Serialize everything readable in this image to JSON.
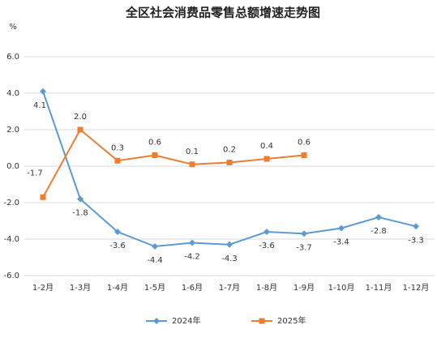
{
  "chart_data": {
    "type": "line",
    "title": "全区社会消费品零售总额增速走势图",
    "y_label": "%",
    "categories": [
      "1-2月",
      "1-3月",
      "1-4月",
      "1-5月",
      "1-6月",
      "1-7月",
      "1-8月",
      "1-9月",
      "1-10月",
      "1-11月",
      "1-12月"
    ],
    "series": [
      {
        "name": "2024年",
        "color": "#5b9bd5",
        "marker": "diamond",
        "values": [
          4.1,
          -1.8,
          -3.6,
          -4.4,
          -4.2,
          -4.3,
          -3.6,
          -3.7,
          -3.4,
          -2.8,
          -3.3
        ],
        "value_labels": [
          "4.1",
          "-1.8",
          "-3.6",
          "-4.4",
          "-4.2",
          "-4.3",
          "-3.6",
          "-3.7",
          "-3.4",
          "-2.8",
          "-3.3"
        ]
      },
      {
        "name": "2025年",
        "color": "#ed7d31",
        "marker": "square",
        "values": [
          -1.7,
          2.0,
          0.3,
          0.6,
          0.1,
          0.2,
          0.4,
          0.6,
          null,
          null,
          null
        ],
        "value_labels": [
          "-1.7",
          "2.0",
          "0.3",
          "0.6",
          "0.1",
          "0.2",
          "0.4",
          "0.6",
          null,
          null,
          null
        ]
      }
    ],
    "ylim": [
      -6,
      6
    ],
    "yticks": [
      {
        "value": -6,
        "label": "-6.0"
      },
      {
        "value": -4,
        "label": "-4.0"
      },
      {
        "value": -2,
        "label": "-2.0"
      },
      {
        "value": 0,
        "label": "0.0"
      },
      {
        "value": 2,
        "label": "2.0"
      },
      {
        "value": 4,
        "label": "4.0"
      },
      {
        "value": 6,
        "label": "6.0"
      }
    ],
    "grid": true,
    "legend": "bottom"
  }
}
